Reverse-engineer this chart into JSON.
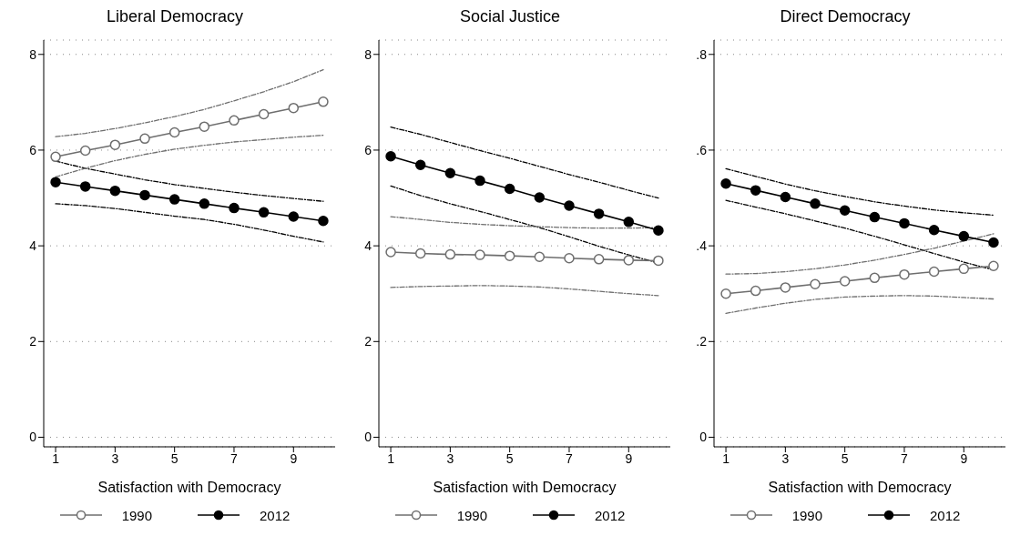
{
  "chart_data": [
    {
      "type": "line",
      "title": "Liberal Democracy",
      "xlabel": "Satisfaction with Democracy",
      "x": [
        1,
        2,
        3,
        4,
        5,
        6,
        7,
        8,
        9,
        10
      ],
      "xlim": [
        0.6,
        10.4
      ],
      "xticks": [
        1,
        3,
        5,
        7,
        9
      ],
      "ylim": [
        -0.2,
        8.3
      ],
      "yticks": [
        0,
        2,
        4,
        6,
        8
      ],
      "grid": "y",
      "legend": "bottom",
      "marker": "circle",
      "line_style": "solid",
      "series": [
        {
          "name": "1990",
          "color": "#6e6e6e",
          "values": [
            5.86,
            5.99,
            6.11,
            6.24,
            6.37,
            6.49,
            6.62,
            6.75,
            6.88,
            7.01
          ]
        },
        {
          "name": "2012",
          "color": "#000000",
          "values": [
            5.33,
            5.24,
            5.15,
            5.06,
            4.97,
            4.88,
            4.79,
            4.7,
            4.61,
            4.52
          ]
        },
        {
          "color": "#6e6e6e",
          "marker": "none",
          "line_style": "dashed",
          "values": [
            5.44,
            5.62,
            5.78,
            5.91,
            6.02,
            6.1,
            6.17,
            6.22,
            6.27,
            6.31
          ]
        },
        {
          "color": "#6e6e6e",
          "marker": "none",
          "line_style": "dashed",
          "values": [
            6.28,
            6.35,
            6.45,
            6.57,
            6.7,
            6.85,
            7.03,
            7.22,
            7.43,
            7.68
          ]
        },
        {
          "color": "#000000",
          "marker": "none",
          "line_style": "dashed",
          "values": [
            4.88,
            4.84,
            4.78,
            4.7,
            4.62,
            4.55,
            4.45,
            4.33,
            4.2,
            4.08
          ]
        },
        {
          "color": "#000000",
          "marker": "none",
          "line_style": "dashed",
          "values": [
            5.77,
            5.62,
            5.5,
            5.38,
            5.28,
            5.2,
            5.12,
            5.05,
            4.99,
            4.93
          ]
        }
      ]
    },
    {
      "type": "line",
      "title": "Social Justice",
      "xlabel": "Satisfaction with Democracy",
      "x": [
        1,
        2,
        3,
        4,
        5,
        6,
        7,
        8,
        9,
        10
      ],
      "xlim": [
        0.6,
        10.4
      ],
      "xticks": [
        1,
        3,
        5,
        7,
        9
      ],
      "ylim": [
        -0.2,
        8.3
      ],
      "yticks": [
        0,
        2,
        4,
        6,
        8
      ],
      "grid": "y",
      "legend": "bottom",
      "marker": "circle",
      "line_style": "solid",
      "series": [
        {
          "name": "1990",
          "color": "#6e6e6e",
          "values": [
            3.87,
            3.84,
            3.82,
            3.81,
            3.79,
            3.77,
            3.74,
            3.72,
            3.7,
            3.69
          ]
        },
        {
          "name": "2012",
          "color": "#000000",
          "values": [
            5.87,
            5.69,
            5.52,
            5.36,
            5.19,
            5.01,
            4.84,
            4.67,
            4.5,
            4.32
          ]
        },
        {
          "color": "#6e6e6e",
          "marker": "none",
          "line_style": "dashed",
          "values": [
            3.13,
            3.15,
            3.16,
            3.17,
            3.16,
            3.14,
            3.1,
            3.05,
            3.0,
            2.96
          ]
        },
        {
          "color": "#6e6e6e",
          "marker": "none",
          "line_style": "dashed",
          "values": [
            4.61,
            4.55,
            4.49,
            4.45,
            4.42,
            4.4,
            4.38,
            4.37,
            4.37,
            4.38
          ]
        },
        {
          "color": "#000000",
          "marker": "none",
          "line_style": "dashed",
          "values": [
            5.25,
            5.05,
            4.88,
            4.72,
            4.55,
            4.38,
            4.19,
            3.99,
            3.81,
            3.64
          ]
        },
        {
          "color": "#000000",
          "marker": "none",
          "line_style": "dashed",
          "values": [
            6.48,
            6.33,
            6.16,
            5.99,
            5.83,
            5.66,
            5.49,
            5.33,
            5.16,
            5.0
          ]
        }
      ]
    },
    {
      "type": "line",
      "title": "Direct Democracy",
      "xlabel": "Satisfaction with Democracy",
      "x": [
        1,
        2,
        3,
        4,
        5,
        6,
        7,
        8,
        9,
        10
      ],
      "xlim": [
        0.6,
        10.4
      ],
      "xticks": [
        1,
        3,
        5,
        7,
        9
      ],
      "ylim": [
        -0.02,
        0.83
      ],
      "yticks": [
        0,
        {
          "value": 0.2,
          "label": ".2"
        },
        {
          "value": 0.4,
          "label": ".4"
        },
        {
          "value": 0.6,
          "label": ".6"
        },
        {
          "value": 0.8,
          "label": ".8"
        }
      ],
      "grid": "y",
      "legend": "bottom",
      "marker": "circle",
      "line_style": "solid",
      "series": [
        {
          "name": "1990",
          "color": "#6e6e6e",
          "values": [
            0.3,
            0.306,
            0.313,
            0.32,
            0.326,
            0.333,
            0.34,
            0.346,
            0.352,
            0.358
          ]
        },
        {
          "name": "2012",
          "color": "#000000",
          "values": [
            0.53,
            0.516,
            0.502,
            0.488,
            0.474,
            0.46,
            0.447,
            0.433,
            0.42,
            0.407
          ]
        },
        {
          "color": "#6e6e6e",
          "marker": "none",
          "line_style": "dashed",
          "values": [
            0.259,
            0.27,
            0.28,
            0.288,
            0.293,
            0.295,
            0.296,
            0.295,
            0.292,
            0.289
          ]
        },
        {
          "color": "#6e6e6e",
          "marker": "none",
          "line_style": "dashed",
          "values": [
            0.341,
            0.342,
            0.346,
            0.352,
            0.36,
            0.37,
            0.382,
            0.395,
            0.41,
            0.425
          ]
        },
        {
          "color": "#000000",
          "marker": "none",
          "line_style": "dashed",
          "values": [
            0.495,
            0.481,
            0.467,
            0.452,
            0.437,
            0.42,
            0.402,
            0.384,
            0.366,
            0.35
          ]
        },
        {
          "color": "#000000",
          "marker": "none",
          "line_style": "dashed",
          "values": [
            0.561,
            0.545,
            0.529,
            0.515,
            0.503,
            0.492,
            0.483,
            0.475,
            0.469,
            0.464
          ]
        }
      ]
    }
  ]
}
